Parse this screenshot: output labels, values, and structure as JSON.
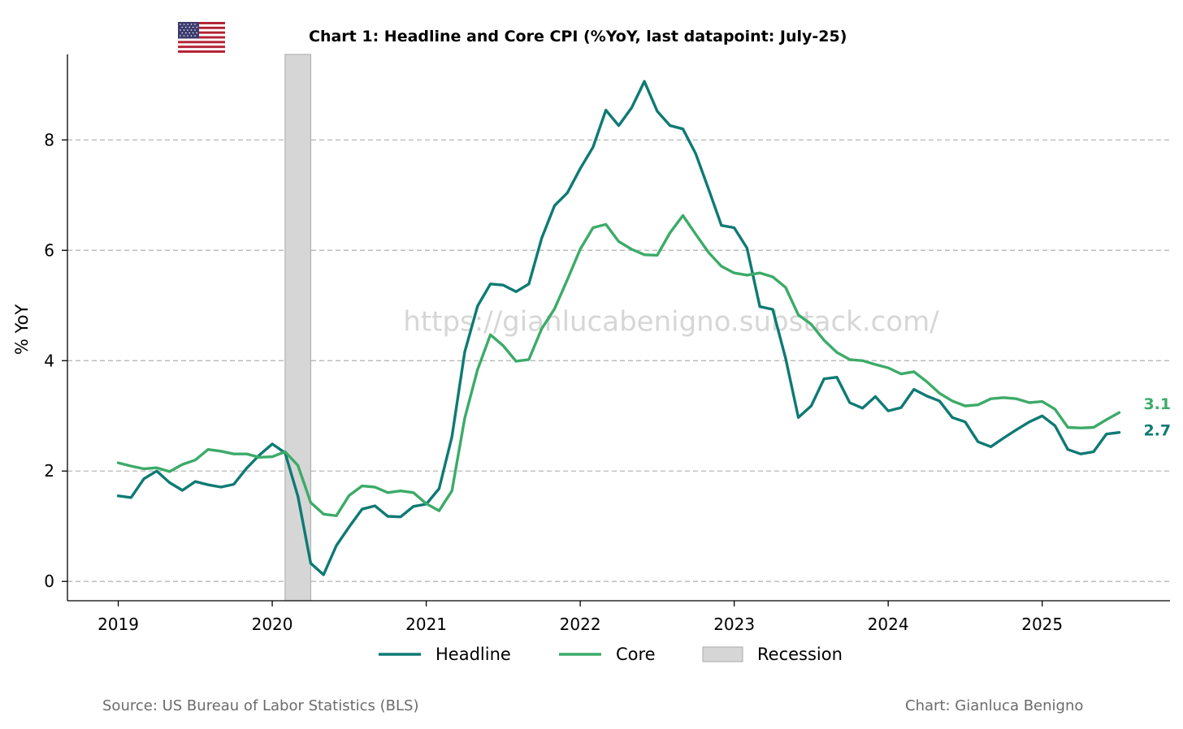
{
  "title": "Chart 1: Headline and Core CPI (%YoY, last datapoint: July-25)",
  "source": "Source: US Bureau of Labor Statistics (BLS)",
  "credit": "Chart: Gianluca Benigno",
  "watermark": "https://gianlucabenigno.substack.com/",
  "flag_icon": "us-flag-icon",
  "chart_data": {
    "type": "line",
    "ylabel": "% YoY",
    "xlabel": "",
    "x_start": "2019-01",
    "x_end": "2025-07",
    "xlim": [
      2018.67,
      2025.83
    ],
    "ylim": [
      -0.35,
      9.55
    ],
    "x_ticks": [
      2019,
      2020,
      2021,
      2022,
      2023,
      2024,
      2025
    ],
    "x_tick_labels": [
      "2019",
      "2020",
      "2021",
      "2022",
      "2023",
      "2024",
      "2025"
    ],
    "y_ticks": [
      0,
      2,
      4,
      6,
      8
    ],
    "y_tick_labels": [
      "0",
      "2",
      "4",
      "6",
      "8"
    ],
    "grid": "horizontal-dashed",
    "legend_position": "bottom-center",
    "series": [
      {
        "name": "Headline",
        "color": "#0e7a74",
        "end_label": "2.7",
        "values": [
          1.55,
          1.52,
          1.86,
          2.0,
          1.79,
          1.65,
          1.81,
          1.75,
          1.71,
          1.76,
          2.05,
          2.29,
          2.49,
          2.33,
          1.54,
          0.33,
          0.12,
          0.65,
          0.99,
          1.31,
          1.37,
          1.18,
          1.17,
          1.36,
          1.4,
          1.68,
          2.62,
          4.16,
          4.99,
          5.39,
          5.37,
          5.25,
          5.39,
          6.22,
          6.81,
          7.04,
          7.48,
          7.87,
          8.54,
          8.26,
          8.58,
          9.06,
          8.52,
          8.26,
          8.2,
          7.75,
          7.11,
          6.45,
          6.41,
          6.04,
          4.98,
          4.93,
          4.05,
          2.97,
          3.18,
          3.67,
          3.7,
          3.24,
          3.14,
          3.35,
          3.09,
          3.15,
          3.48,
          3.36,
          3.27,
          2.97,
          2.89,
          2.53,
          2.44,
          2.6,
          2.75,
          2.89,
          3.0,
          2.82,
          2.39,
          2.31,
          2.35,
          2.67,
          2.7
        ]
      },
      {
        "name": "Core",
        "color": "#3cab68",
        "end_label": "3.1",
        "values": [
          2.15,
          2.09,
          2.04,
          2.06,
          1.99,
          2.12,
          2.2,
          2.39,
          2.36,
          2.31,
          2.31,
          2.25,
          2.26,
          2.35,
          2.1,
          1.43,
          1.22,
          1.19,
          1.56,
          1.73,
          1.71,
          1.61,
          1.64,
          1.61,
          1.41,
          1.28,
          1.64,
          2.96,
          3.84,
          4.47,
          4.27,
          3.99,
          4.02,
          4.58,
          4.94,
          5.47,
          6.02,
          6.41,
          6.47,
          6.16,
          6.02,
          5.92,
          5.91,
          6.32,
          6.63,
          6.29,
          5.96,
          5.71,
          5.59,
          5.55,
          5.59,
          5.52,
          5.33,
          4.83,
          4.66,
          4.37,
          4.15,
          4.02,
          4.0,
          3.93,
          3.87,
          3.76,
          3.8,
          3.62,
          3.41,
          3.27,
          3.18,
          3.2,
          3.31,
          3.33,
          3.31,
          3.24,
          3.26,
          3.12,
          2.79,
          2.78,
          2.79,
          2.93,
          3.06
        ]
      }
    ],
    "recession": {
      "name": "Recession",
      "x_start": "2020-02",
      "x_end": "2020-04",
      "color": "#d6d6d6"
    }
  }
}
